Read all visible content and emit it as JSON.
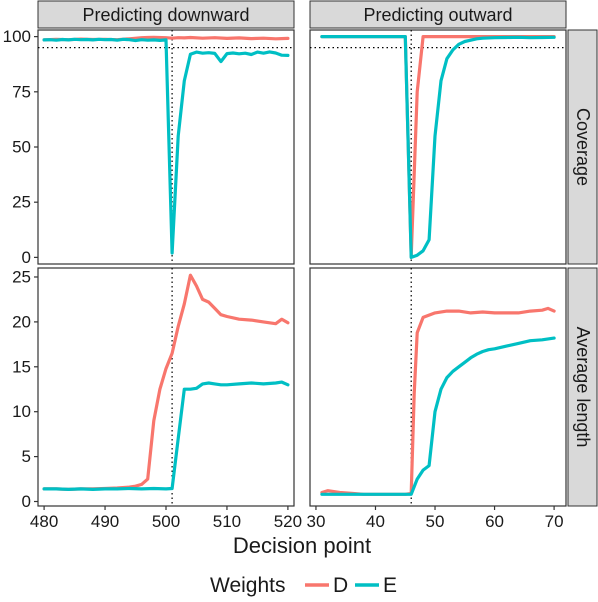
{
  "chart_data": {
    "type": "line",
    "facet_columns": [
      "Predicting downward",
      "Predicting outward"
    ],
    "facet_rows": [
      "Coverage",
      "Average length"
    ],
    "xlabel": "Decision point",
    "legend": {
      "title": "Weights",
      "position": "bottom",
      "entries": [
        "D",
        "E"
      ]
    },
    "colors": {
      "D": "#F8766D",
      "E": "#00BFC4"
    },
    "grid": false,
    "panels": [
      {
        "column": "Predicting downward",
        "row": "Coverage",
        "xlim": [
          479,
          521
        ],
        "ylim": [
          -3,
          103
        ],
        "x_ticks": [
          480,
          490,
          500,
          510,
          520
        ],
        "y_ticks": [
          0,
          25,
          50,
          75,
          100
        ],
        "vline_x": 501,
        "hline_y": 95,
        "series": [
          {
            "name": "D",
            "x": [
              480,
              482,
              484,
              486,
              488,
              490,
              492,
              494,
              496,
              497,
              498,
              500,
              501,
              502,
              503,
              504,
              506,
              508,
              510,
              512,
              514,
              516,
              518,
              520
            ],
            "y": [
              98.5,
              98.8,
              98.6,
              98.9,
              98.7,
              98.8,
              98.6,
              99.0,
              99.5,
              99.6,
              99.7,
              99.5,
              99.3,
              99.5,
              99.4,
              99.6,
              99.3,
              99.5,
              99.2,
              99.4,
              99.1,
              99.3,
              99.0,
              99.2
            ]
          },
          {
            "name": "E",
            "x": [
              480,
              481,
              482,
              483,
              484,
              485,
              486,
              487,
              488,
              489,
              490,
              491,
              492,
              493,
              494,
              495,
              496,
              497,
              498,
              499,
              500,
              501,
              502,
              503,
              504,
              505,
              506,
              507,
              508,
              509,
              510,
              511,
              512,
              513,
              514,
              515,
              516,
              517,
              518,
              519,
              520
            ],
            "y": [
              98.5,
              98.6,
              98.4,
              98.7,
              98.5,
              98.8,
              98.6,
              98.7,
              98.5,
              98.8,
              98.6,
              98.7,
              98.4,
              98.8,
              98.6,
              98.2,
              98.6,
              98.4,
              98.5,
              98.3,
              98.5,
              2.0,
              55.0,
              80.0,
              92.0,
              93.0,
              92.5,
              92.7,
              92.4,
              88.7,
              92.3,
              92.6,
              92.2,
              92.5,
              91.9,
              93.0,
              92.5,
              93.1,
              92.6,
              91.6,
              91.5
            ]
          }
        ]
      },
      {
        "column": "Predicting outward",
        "row": "Coverage",
        "xlim": [
          29,
          72
        ],
        "ylim": [
          -3,
          103
        ],
        "x_ticks": [
          30,
          40,
          50,
          60,
          70
        ],
        "y_ticks": [
          0,
          25,
          50,
          75,
          100
        ],
        "vline_x": 46,
        "hline_y": 95,
        "series": [
          {
            "name": "D",
            "x": [
              31,
              33,
              35,
              37,
              39,
              41,
              43,
              45,
              46,
              47,
              48,
              50,
              52,
              55,
              58,
              60,
              62,
              64,
              66,
              68,
              70
            ],
            "y": [
              100,
              100,
              100,
              100,
              100,
              100,
              100,
              100,
              0.5,
              75.0,
              100,
              100,
              100,
              100,
              100,
              100,
              100,
              100,
              100,
              100,
              100
            ]
          },
          {
            "name": "E",
            "x": [
              31,
              33,
              35,
              37,
              39,
              41,
              43,
              44,
              45,
              46,
              47,
              48,
              49,
              50,
              51,
              52,
              53,
              54,
              55,
              56,
              57,
              58,
              60,
              62,
              64,
              66,
              68,
              70
            ],
            "y": [
              100,
              100,
              100,
              100,
              100,
              100,
              100,
              100,
              100,
              0.0,
              1.0,
              3.0,
              8.0,
              55.0,
              80.0,
              90.0,
              94.0,
              96.5,
              97.8,
              98.4,
              99.0,
              99.3,
              99.5,
              99.6,
              99.7,
              99.5,
              99.6,
              99.7
            ]
          }
        ]
      },
      {
        "column": "Predicting downward",
        "row": "Average length",
        "xlim": [
          479,
          521
        ],
        "ylim": [
          -0.5,
          26
        ],
        "x_ticks": [
          480,
          490,
          500,
          510,
          520
        ],
        "y_ticks": [
          0,
          5,
          10,
          15,
          20,
          25
        ],
        "vline_x": 501,
        "series": [
          {
            "name": "D",
            "x": [
              480,
              482,
              484,
              486,
              488,
              490,
              492,
              494,
              495,
              496,
              497,
              498,
              499,
              500,
              501,
              502,
              503,
              504,
              505,
              506,
              507,
              508,
              509,
              510,
              512,
              514,
              516,
              518,
              519,
              520
            ],
            "y": [
              1.4,
              1.4,
              1.35,
              1.4,
              1.4,
              1.45,
              1.5,
              1.6,
              1.7,
              1.9,
              2.5,
              9.0,
              12.5,
              14.8,
              16.5,
              19.5,
              22.0,
              25.2,
              24.0,
              22.5,
              22.2,
              21.5,
              20.8,
              20.6,
              20.3,
              20.2,
              20.0,
              19.8,
              20.3,
              19.9
            ]
          },
          {
            "name": "E",
            "x": [
              480,
              482,
              484,
              486,
              488,
              490,
              492,
              494,
              496,
              498,
              500,
              501,
              502,
              503,
              504,
              505,
              506,
              507,
              508,
              509,
              510,
              512,
              514,
              516,
              518,
              519,
              520
            ],
            "y": [
              1.4,
              1.4,
              1.35,
              1.4,
              1.35,
              1.4,
              1.4,
              1.45,
              1.4,
              1.45,
              1.4,
              1.45,
              7.0,
              12.5,
              12.5,
              12.6,
              13.1,
              13.2,
              13.1,
              13.0,
              13.0,
              13.1,
              13.2,
              13.1,
              13.2,
              13.3,
              13.0
            ]
          }
        ]
      },
      {
        "column": "Predicting outward",
        "row": "Average length",
        "xlim": [
          29,
          72
        ],
        "ylim": [
          -0.5,
          26
        ],
        "x_ticks": [
          30,
          40,
          50,
          60,
          70
        ],
        "y_ticks": [
          0,
          5,
          10,
          15,
          20,
          25
        ],
        "vline_x": 46,
        "series": [
          {
            "name": "D",
            "x": [
              31,
              32,
              34,
              36,
              38,
              40,
              42,
              44,
              45,
              46,
              46.5,
              47,
              48,
              50,
              52,
              54,
              56,
              58,
              60,
              62,
              64,
              66,
              68,
              69,
              70
            ],
            "y": [
              1.0,
              1.2,
              1.0,
              0.9,
              0.8,
              0.8,
              0.8,
              0.8,
              0.8,
              0.9,
              12.0,
              18.8,
              20.5,
              21.0,
              21.2,
              21.2,
              21.0,
              21.1,
              21.0,
              21.0,
              21.0,
              21.2,
              21.3,
              21.5,
              21.2
            ]
          },
          {
            "name": "E",
            "x": [
              31,
              32,
              34,
              36,
              38,
              40,
              42,
              44,
              45,
              46,
              47,
              48,
              49,
              50,
              51,
              52,
              53,
              54,
              55,
              56,
              57,
              58,
              59,
              60,
              62,
              64,
              66,
              68,
              70
            ],
            "y": [
              0.8,
              0.8,
              0.8,
              0.8,
              0.8,
              0.8,
              0.8,
              0.8,
              0.8,
              0.8,
              2.5,
              3.5,
              4.0,
              10.0,
              12.5,
              13.8,
              14.5,
              15.0,
              15.5,
              16.0,
              16.4,
              16.7,
              16.9,
              17.0,
              17.3,
              17.6,
              17.9,
              18.0,
              18.2
            ]
          }
        ]
      }
    ]
  }
}
